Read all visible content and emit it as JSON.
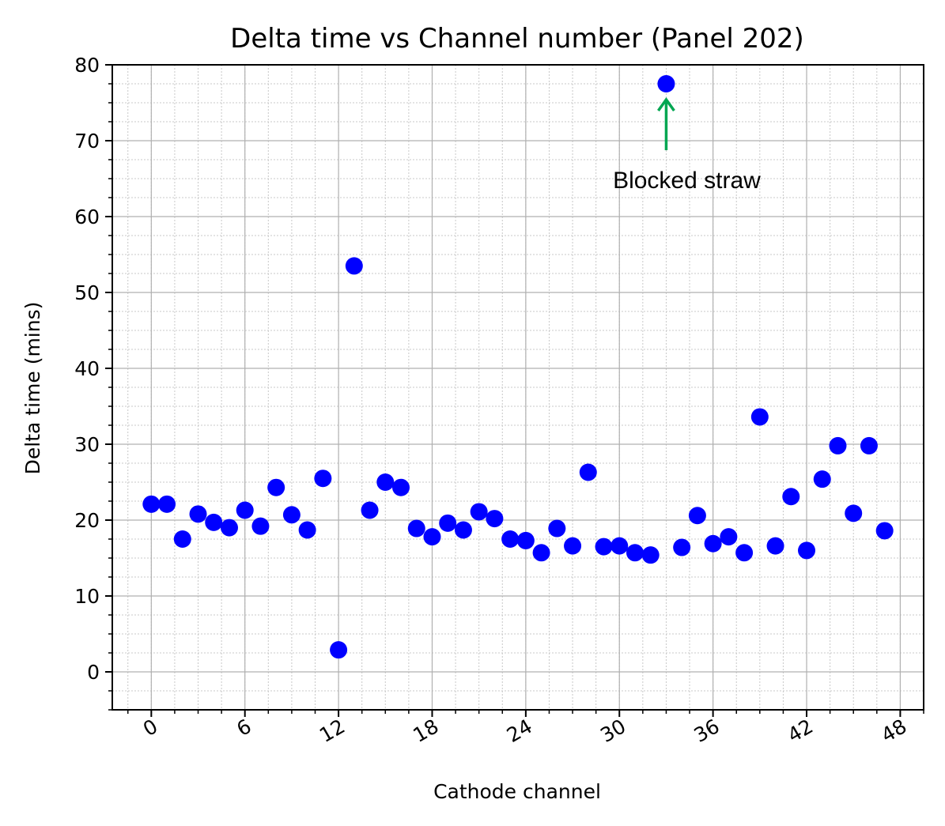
{
  "chart_data": {
    "type": "scatter",
    "title": "Delta time vs Channel number (Panel 202)",
    "xlabel": "Cathode channel",
    "ylabel": "Delta time (mins)",
    "xlim": [
      -2.5,
      49.5
    ],
    "ylim": [
      -5,
      80
    ],
    "xticks": [
      0,
      6,
      12,
      18,
      24,
      30,
      36,
      42,
      48
    ],
    "yticks": [
      0,
      10,
      20,
      30,
      40,
      50,
      60,
      70,
      80
    ],
    "grid": true,
    "marker_color": "#0000ff",
    "series": [
      {
        "x": [
          0,
          1,
          2,
          3,
          4,
          5,
          6,
          7,
          8,
          9,
          10,
          11,
          12,
          13,
          14,
          15,
          16,
          17,
          18,
          19,
          20,
          21,
          22,
          23,
          24,
          25,
          26,
          27,
          28,
          29,
          30,
          31,
          32,
          33,
          34,
          35,
          36,
          37,
          38,
          39,
          40,
          41,
          42,
          43,
          44,
          45,
          46,
          47
        ],
        "y": [
          22.1,
          22.1,
          17.5,
          20.8,
          19.7,
          19.0,
          21.3,
          19.2,
          24.3,
          20.7,
          18.7,
          25.5,
          2.9,
          53.5,
          21.3,
          25.0,
          24.3,
          18.9,
          17.8,
          19.6,
          18.7,
          21.1,
          20.2,
          17.5,
          17.3,
          15.7,
          18.9,
          16.6,
          26.3,
          16.5,
          16.6,
          15.7,
          15.4,
          77.5,
          16.4,
          20.6,
          16.9,
          17.8,
          15.7,
          33.6,
          16.6,
          23.1,
          16.0,
          25.4,
          29.8,
          20.9,
          29.8,
          18.6
        ]
      }
    ],
    "annotation": {
      "text": "Blocked straw",
      "arrow_color": "#00a651",
      "target_x": 33,
      "target_y": 77.5,
      "text_x": 33,
      "text_y": 65
    }
  }
}
